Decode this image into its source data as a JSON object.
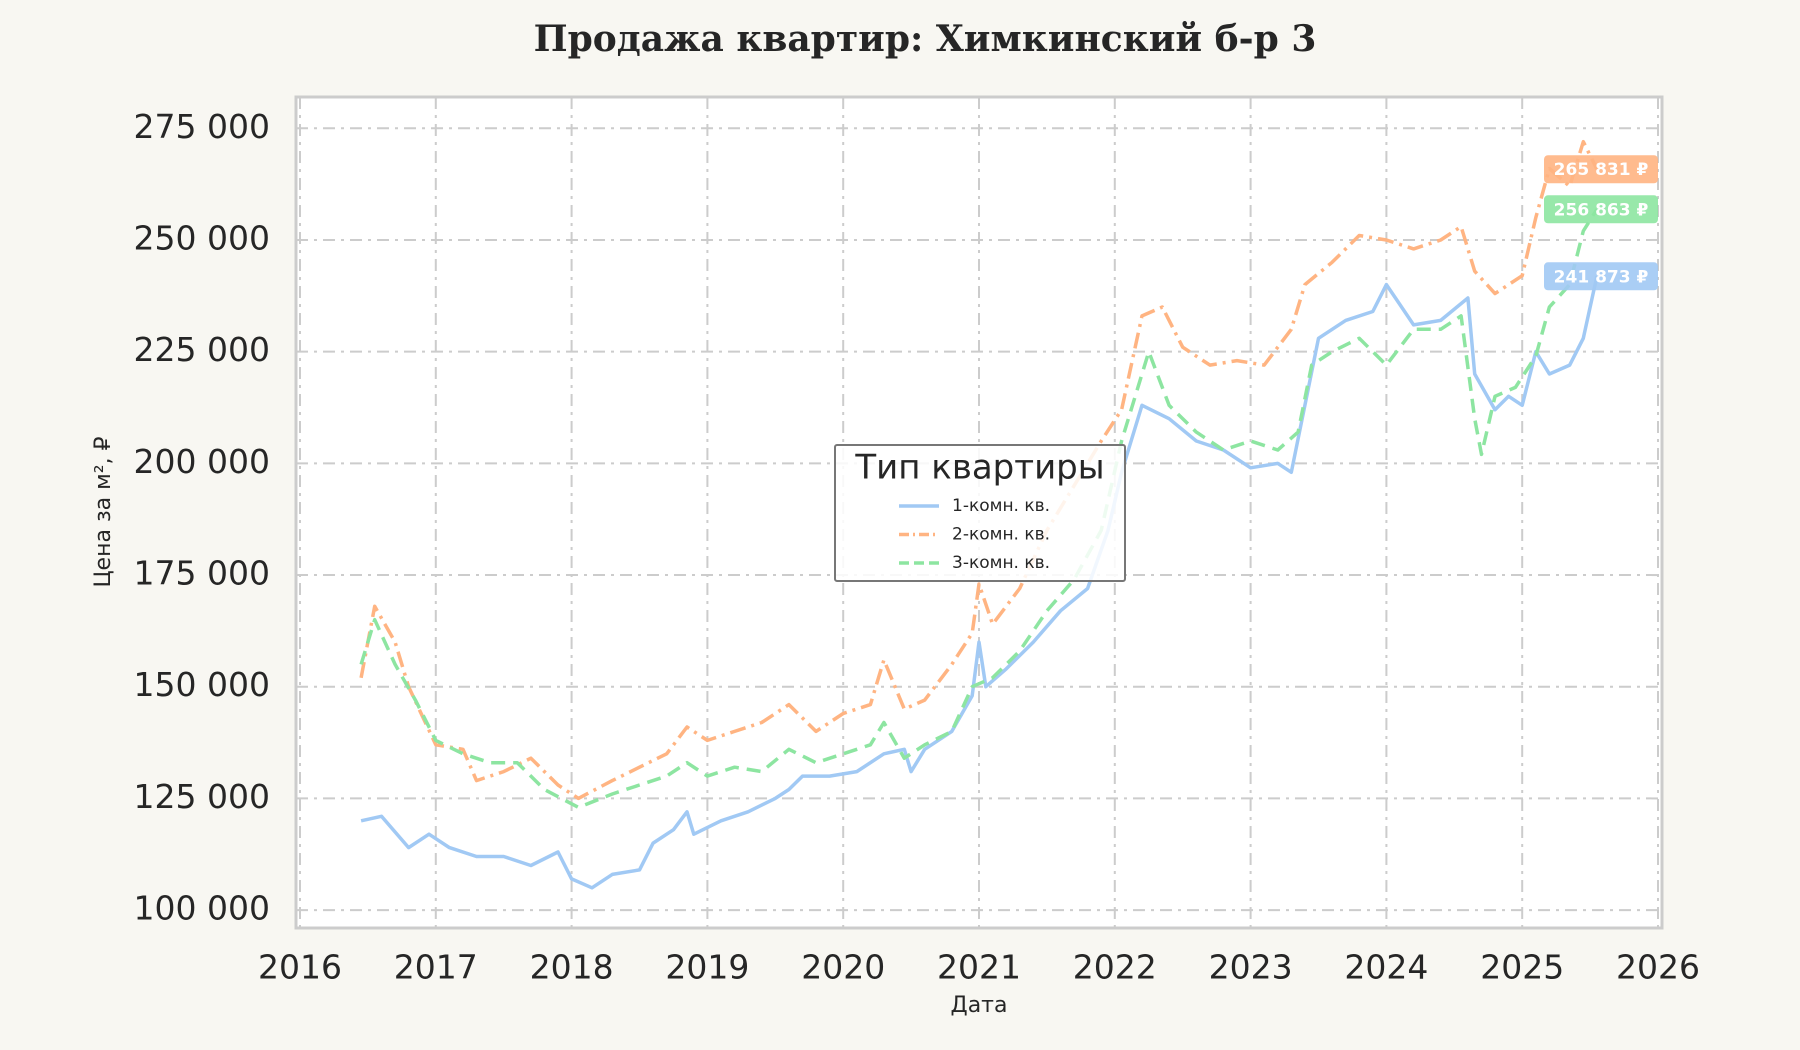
{
  "chart_data": {
    "type": "line",
    "title": "Продажа квартир: Химкинский б-р 3",
    "x_label": "Дата",
    "y_label": "Цена за м², ₽",
    "xlim": [
      2016,
      2026
    ],
    "xticks": [
      2016,
      2017,
      2018,
      2019,
      2020,
      2021,
      2022,
      2023,
      2024,
      2025,
      2026
    ],
    "ylim": [
      96000,
      282000
    ],
    "yticks": [
      {
        "value": 100000,
        "label": "100 000"
      },
      {
        "value": 125000,
        "label": "125 000"
      },
      {
        "value": 150000,
        "label": "150 000"
      },
      {
        "value": 175000,
        "label": "175 000"
      },
      {
        "value": 200000,
        "label": "200 000"
      },
      {
        "value": 225000,
        "label": "225 000"
      },
      {
        "value": 250000,
        "label": "250 000"
      },
      {
        "value": 275000,
        "label": "275 000"
      }
    ],
    "grid": true,
    "legend_title": "Тип квартиры",
    "legend_position": "center",
    "series": [
      {
        "name": "1-комн. кв.",
        "color": "#a1c9f4",
        "dash": "solid",
        "last_value_label": "241 873 ₽",
        "x": [
          2016.45,
          2016.6,
          2016.8,
          2016.95,
          2017.1,
          2017.3,
          2017.5,
          2017.7,
          2017.9,
          2018.0,
          2018.15,
          2018.3,
          2018.5,
          2018.6,
          2018.75,
          2018.85,
          2018.9,
          2019.1,
          2019.3,
          2019.5,
          2019.6,
          2019.7,
          2019.9,
          2020.1,
          2020.3,
          2020.45,
          2020.5,
          2020.6,
          2020.8,
          2020.95,
          2021.0,
          2021.05,
          2021.2,
          2021.4,
          2021.6,
          2021.8,
          2021.95,
          2022.05,
          2022.2,
          2022.4,
          2022.6,
          2022.8,
          2023.0,
          2023.2,
          2023.3,
          2023.4,
          2023.5,
          2023.7,
          2023.9,
          2024.0,
          2024.2,
          2024.4,
          2024.6,
          2024.65,
          2024.8,
          2024.9,
          2025.0,
          2025.1,
          2025.2,
          2025.35,
          2025.45,
          2025.55
        ],
        "values": [
          120000,
          121000,
          114000,
          117000,
          114000,
          112000,
          112000,
          110000,
          113000,
          107000,
          105000,
          108000,
          109000,
          115000,
          118000,
          122000,
          117000,
          120000,
          122000,
          125000,
          127000,
          130000,
          130000,
          131000,
          135000,
          136000,
          131000,
          136000,
          140000,
          148000,
          160000,
          150000,
          154000,
          160000,
          167000,
          172000,
          185000,
          198000,
          213000,
          210000,
          205000,
          203000,
          199000,
          200000,
          198000,
          213000,
          228000,
          232000,
          234000,
          240000,
          231000,
          232000,
          237000,
          220000,
          212000,
          215000,
          213000,
          225000,
          220000,
          222000,
          228000,
          241873
        ]
      },
      {
        "name": "2-комн. кв.",
        "color": "#ffb482",
        "dash": "dashdot",
        "last_value_label": "265 831 ₽",
        "x": [
          2016.45,
          2016.55,
          2016.7,
          2016.8,
          2017.0,
          2017.2,
          2017.3,
          2017.5,
          2017.7,
          2017.9,
          2018.05,
          2018.3,
          2018.5,
          2018.7,
          2018.85,
          2019.0,
          2019.2,
          2019.4,
          2019.6,
          2019.8,
          2020.0,
          2020.2,
          2020.3,
          2020.45,
          2020.6,
          2020.8,
          2020.95,
          2021.0,
          2021.1,
          2021.3,
          2021.5,
          2021.7,
          2021.9,
          2022.05,
          2022.2,
          2022.35,
          2022.5,
          2022.7,
          2022.9,
          2023.1,
          2023.3,
          2023.4,
          2023.6,
          2023.8,
          2024.0,
          2024.2,
          2024.4,
          2024.55,
          2024.65,
          2024.8,
          2025.0,
          2025.1,
          2025.2,
          2025.35,
          2025.45,
          2025.55
        ],
        "values": [
          152000,
          168000,
          160000,
          150000,
          137000,
          136000,
          129000,
          131000,
          134000,
          128000,
          125000,
          129000,
          132000,
          135000,
          141000,
          138000,
          140000,
          142000,
          146000,
          140000,
          144000,
          146000,
          156000,
          145000,
          147000,
          155000,
          162000,
          173000,
          164000,
          172000,
          185000,
          195000,
          205000,
          212000,
          233000,
          235000,
          226000,
          222000,
          223000,
          222000,
          230000,
          240000,
          245000,
          251000,
          250000,
          248000,
          250000,
          253000,
          243000,
          238000,
          242000,
          255000,
          266000,
          262000,
          272000,
          265831
        ]
      },
      {
        "name": "3-комн. кв.",
        "color": "#8de5a1",
        "dash": "dashed",
        "last_value_label": "256 863 ₽",
        "x": [
          2016.45,
          2016.55,
          2016.7,
          2016.85,
          2017.0,
          2017.2,
          2017.4,
          2017.6,
          2017.8,
          2018.05,
          2018.3,
          2018.5,
          2018.7,
          2018.85,
          2019.0,
          2019.2,
          2019.4,
          2019.6,
          2019.8,
          2020.0,
          2020.2,
          2020.3,
          2020.45,
          2020.6,
          2020.8,
          2020.95,
          2021.1,
          2021.3,
          2021.5,
          2021.7,
          2021.9,
          2022.05,
          2022.25,
          2022.4,
          2022.6,
          2022.8,
          2023.0,
          2023.2,
          2023.35,
          2023.45,
          2023.6,
          2023.8,
          2024.0,
          2024.2,
          2024.4,
          2024.55,
          2024.65,
          2024.7,
          2024.8,
          2024.95,
          2025.1,
          2025.2,
          2025.35,
          2025.45,
          2025.55
        ],
        "values": [
          155000,
          165000,
          155000,
          147000,
          138000,
          135000,
          133000,
          133000,
          127000,
          123000,
          126000,
          128000,
          130000,
          133000,
          130000,
          132000,
          131000,
          136000,
          133000,
          135000,
          137000,
          142000,
          134000,
          137000,
          140000,
          150000,
          152000,
          158000,
          167000,
          174000,
          185000,
          205000,
          225000,
          213000,
          207000,
          203000,
          205000,
          203000,
          207000,
          222000,
          225000,
          228000,
          222000,
          230000,
          230000,
          233000,
          210000,
          202000,
          215000,
          217000,
          224000,
          235000,
          240000,
          252000,
          256863
        ]
      }
    ]
  }
}
